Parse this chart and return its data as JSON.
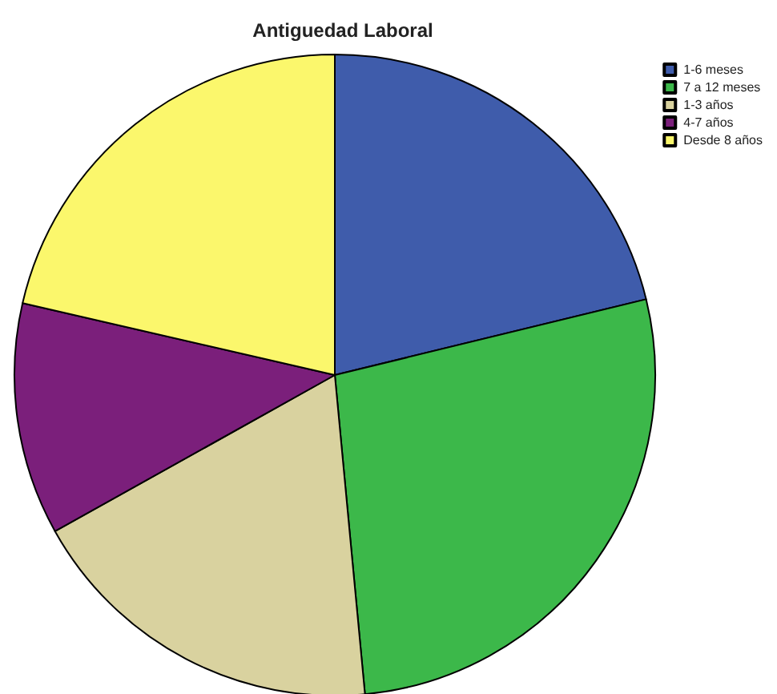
{
  "chart_data": {
    "type": "pie",
    "title": "Antiguedad Laboral",
    "categories": [
      "1-6 meses",
      "7 a 12 meses",
      "1-3 años",
      "4-7 años",
      "Desde 8 años"
    ],
    "values": [
      21.2,
      27.3,
      18.4,
      11.7,
      21.4
    ],
    "colors": [
      "#3f5cab",
      "#3cb84a",
      "#d9d29f",
      "#7b1f7b",
      "#fbf76c"
    ],
    "legend": "top right"
  }
}
